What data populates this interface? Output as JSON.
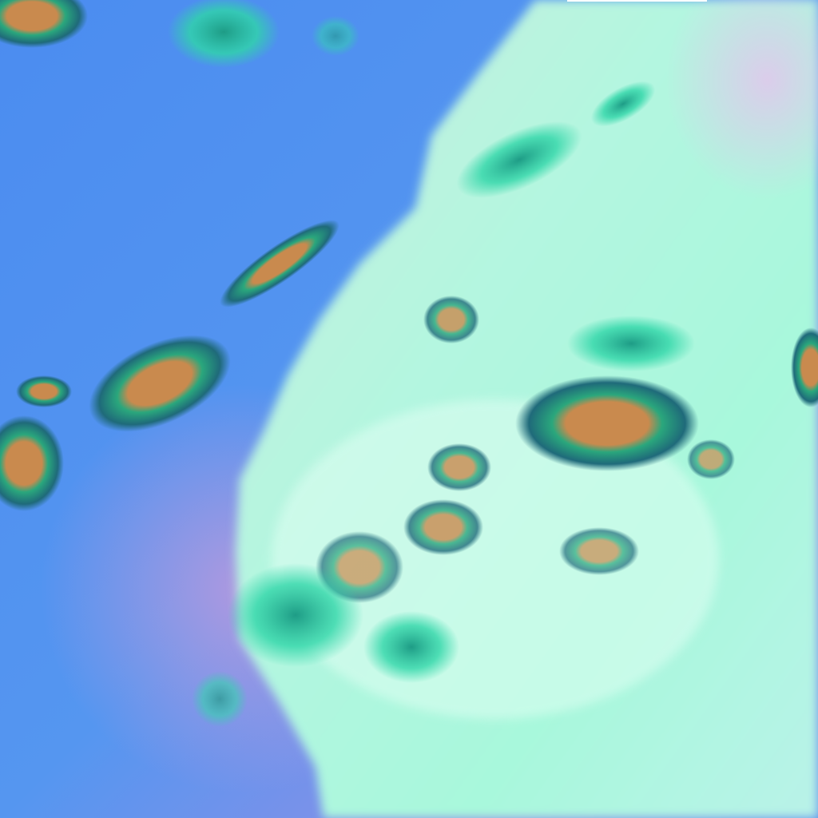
{
  "image": {
    "kind": "false-color satellite imagery",
    "colors": {
      "ocean": "#4f8ff0",
      "ocean_haze": "#c79be0",
      "land": "#a6f7dc",
      "land_bright": "#d8fff0",
      "land_violet": "#d9c8f0",
      "cloud_teal": "#2fd6a8",
      "cloud_dark": "#1f6a7a",
      "cloud_core": "#c98a4e"
    }
  }
}
